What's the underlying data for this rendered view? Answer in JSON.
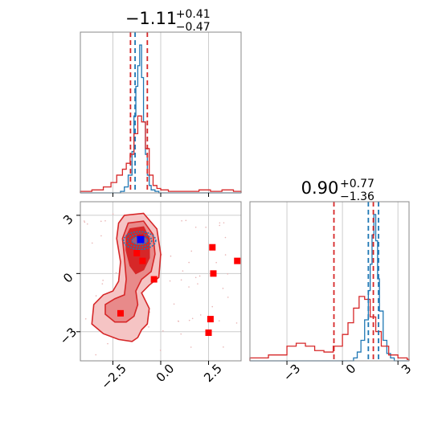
{
  "chart_data": [
    {
      "panel": "histogram-param-1",
      "type": "histogram",
      "title": {
        "value": "−1.11",
        "upper": "+0.41",
        "lower": "−0.47"
      },
      "xlim": [
        -4.2,
        4.2
      ],
      "grid": true,
      "xticks": [
        -2.5,
        0.0,
        2.5
      ],
      "quantile_lines": {
        "red": [
          -1.58,
          -0.7
        ],
        "blue": [
          -1.34
        ]
      },
      "series": [
        {
          "color": "#1f77b4",
          "bins_x": [
            -2.3,
            -2.1,
            -1.9,
            -1.7,
            -1.5,
            -1.4,
            -1.3,
            -1.2,
            -1.1,
            -1.0,
            -0.9,
            -0.8,
            -0.7,
            -0.6,
            -0.5,
            -0.3,
            -0.1
          ],
          "heights": [
            0.0,
            0.01,
            0.04,
            0.12,
            0.28,
            0.52,
            0.72,
            0.86,
            1.0,
            0.78,
            0.48,
            0.26,
            0.12,
            0.05,
            0.02,
            0.01,
            0.0
          ]
        },
        {
          "color": "#d62728",
          "bins_x": [
            -4.2,
            -3.6,
            -3.0,
            -2.6,
            -2.3,
            -2.0,
            -1.8,
            -1.6,
            -1.4,
            -1.2,
            -1.0,
            -0.8,
            -0.6,
            -0.4,
            -0.2,
            0.0,
            0.4,
            0.8,
            1.4,
            2.0,
            2.6,
            3.2,
            3.8
          ],
          "heights": [
            0.01,
            0.02,
            0.04,
            0.07,
            0.12,
            0.16,
            0.2,
            0.26,
            0.4,
            0.52,
            0.48,
            0.3,
            0.12,
            0.05,
            0.03,
            0.02,
            0.01,
            0.01,
            0.01,
            0.02,
            0.01,
            0.02,
            0.01
          ]
        }
      ]
    },
    {
      "panel": "histogram-param-2",
      "type": "histogram",
      "title": {
        "value": "0.90",
        "upper": "+0.77",
        "lower": "−1.36"
      },
      "xlim": [
        -5.0,
        3.6
      ],
      "grid": true,
      "xticks": [
        -3,
        0,
        3
      ],
      "quantile_lines": {
        "red": [
          -0.46,
          1.67
        ],
        "blue": [
          1.4,
          1.95
        ]
      },
      "series": [
        {
          "color": "#1f77b4",
          "bins_x": [
            0.4,
            0.6,
            0.8,
            1.0,
            1.2,
            1.4,
            1.5,
            1.6,
            1.7,
            1.8,
            1.9,
            2.0,
            2.2,
            2.4,
            2.6,
            2.8
          ],
          "heights": [
            0.0,
            0.02,
            0.06,
            0.14,
            0.28,
            0.48,
            0.66,
            0.86,
            1.0,
            0.82,
            0.56,
            0.34,
            0.14,
            0.05,
            0.02,
            0.0
          ]
        },
        {
          "color": "#d62728",
          "bins_x": [
            -5.0,
            -4.0,
            -3.0,
            -2.5,
            -2.0,
            -1.5,
            -1.0,
            -0.5,
            0.0,
            0.3,
            0.6,
            0.9,
            1.2,
            1.5,
            1.8,
            2.1,
            2.5,
            3.0,
            3.5
          ],
          "heights": [
            0.02,
            0.04,
            0.1,
            0.12,
            0.1,
            0.07,
            0.06,
            0.1,
            0.18,
            0.26,
            0.36,
            0.44,
            0.42,
            0.3,
            0.2,
            0.1,
            0.04,
            0.02,
            0.01
          ]
        }
      ]
    },
    {
      "panel": "corner-2d-param1-param2",
      "type": "scatter",
      "xlim": [
        -4.2,
        4.2
      ],
      "ylim": [
        -4.5,
        3.7
      ],
      "grid": true,
      "xticks": [
        -2.5,
        0.0,
        2.5
      ],
      "yticks": [
        -3,
        0,
        3
      ],
      "markers_red": {
        "x": [
          -1.05,
          -1.25,
          -0.95,
          -0.35,
          -2.1,
          2.7,
          2.75,
          4.0,
          2.6,
          2.5
        ],
        "y": [
          1.85,
          1.05,
          0.65,
          -0.3,
          -2.05,
          1.35,
          0.0,
          0.65,
          -2.35,
          -3.05
        ]
      },
      "marker_blue": {
        "x": [
          -1.05
        ],
        "y": [
          1.75
        ]
      },
      "contour_blue_center": {
        "x": -1.1,
        "y": 1.7
      }
    }
  ]
}
